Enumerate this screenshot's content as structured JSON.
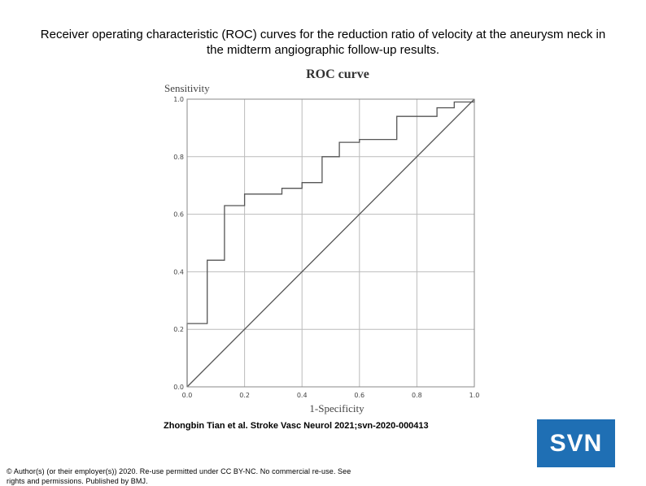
{
  "slide": {
    "title": "Receiver operating characteristic (ROC) curves for the reduction ratio of velocity at the aneurysm neck in the midterm angiographic follow-up results.",
    "citation": "Zhongbin Tian et al. Stroke Vasc Neurol 2021;svn-2020-000413",
    "copyright": "© Author(s) (or their employer(s)) 2020. Re-use permitted under CC BY-NC. No commercial re-use. See rights and permissions. Published by BMJ.",
    "logo_text": "SVN",
    "logo_color": "#1f6fb4"
  },
  "chart_data": {
    "type": "line",
    "title": "ROC curve",
    "xlabel": "1-Specificity",
    "ylabel": "Sensitivity",
    "xlim": [
      0,
      1
    ],
    "ylim": [
      0,
      1
    ],
    "xticks": [
      "0.0",
      "0.2",
      "0.4",
      "0.6",
      "0.8",
      "1.0"
    ],
    "yticks": [
      "0.0",
      "0.2",
      "0.4",
      "0.6",
      "0.8",
      "1.0"
    ],
    "grid": true,
    "series": [
      {
        "color": "#555555",
        "x": [
          0,
          0,
          0.07,
          0.07,
          0.13,
          0.13,
          0.2,
          0.2,
          0.33,
          0.33,
          0.4,
          0.4,
          0.47,
          0.47,
          0.53,
          0.53,
          0.6,
          0.6,
          0.73,
          0.73,
          0.87,
          0.87,
          0.93,
          0.93,
          1.0,
          1.0
        ],
        "y": [
          0,
          0.22,
          0.22,
          0.44,
          0.44,
          0.63,
          0.63,
          0.67,
          0.67,
          0.69,
          0.69,
          0.71,
          0.71,
          0.8,
          0.8,
          0.85,
          0.85,
          0.86,
          0.86,
          0.94,
          0.94,
          0.97,
          0.97,
          0.99,
          0.99,
          1.0
        ]
      },
      {
        "color": "#555555",
        "x": [
          0,
          1
        ],
        "y": [
          0,
          1
        ]
      }
    ]
  }
}
